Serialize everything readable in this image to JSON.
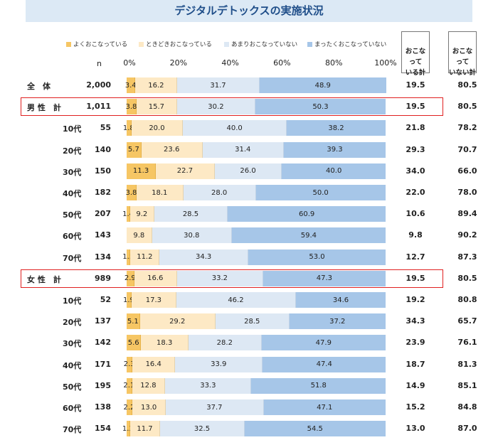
{
  "title": "デジタルデトックスの実施状況",
  "n_label": "n",
  "legend": [
    {
      "label": "よくおこなっている",
      "color": "#f6c664"
    },
    {
      "label": "ときどきおこなっている",
      "color": "#fde9c5"
    },
    {
      "label": "あまりおこなっていない",
      "color": "#dde8f4"
    },
    {
      "label": "まったくおこなっていない",
      "color": "#a6c6e8"
    }
  ],
  "header_box_1": "おこなって\nいる計",
  "header_box_2": "おこなって\nいない計",
  "chart_data": {
    "type": "bar",
    "stacked": true,
    "orientation": "horizontal",
    "title": "デジタルデトックスの実施状況",
    "xlim": [
      0,
      100
    ],
    "x_ticks": [
      "0%",
      "20%",
      "40%",
      "60%",
      "80%",
      "100%"
    ],
    "series": [
      "よくおこなっている",
      "ときどきおこなっている",
      "あまりおこなっていない",
      "まったくおこなっていない"
    ],
    "rows": [
      {
        "label": "全　体",
        "group": true,
        "n": "2,000",
        "values": [
          3.4,
          16.2,
          31.7,
          48.9
        ],
        "done": "19.5",
        "not_done": "80.5"
      },
      {
        "label": "男 性　計",
        "group": true,
        "highlight": true,
        "n": "1,011",
        "values": [
          3.8,
          15.7,
          30.2,
          50.3
        ],
        "done": "19.5",
        "not_done": "80.5"
      },
      {
        "label": "10代",
        "n": "55",
        "values": [
          1.8,
          20.0,
          40.0,
          38.2
        ],
        "done": "21.8",
        "not_done": "78.2"
      },
      {
        "label": "20代",
        "n": "140",
        "values": [
          5.7,
          23.6,
          31.4,
          39.3
        ],
        "done": "29.3",
        "not_done": "70.7"
      },
      {
        "label": "30代",
        "n": "150",
        "values": [
          11.3,
          22.7,
          26.0,
          40.0
        ],
        "done": "34.0",
        "not_done": "66.0"
      },
      {
        "label": "40代",
        "n": "182",
        "values": [
          3.8,
          18.1,
          28.0,
          50.0
        ],
        "done": "22.0",
        "not_done": "78.0"
      },
      {
        "label": "50代",
        "n": "207",
        "values": [
          1.4,
          9.2,
          28.5,
          60.9
        ],
        "done": "10.6",
        "not_done": "89.4"
      },
      {
        "label": "60代",
        "n": "143",
        "values": [
          0.0,
          9.8,
          30.8,
          59.4
        ],
        "done": "9.8",
        "not_done": "90.2"
      },
      {
        "label": "70代",
        "n": "134",
        "values": [
          1.5,
          11.2,
          34.3,
          53.0
        ],
        "done": "12.7",
        "not_done": "87.3"
      },
      {
        "label": "女 性　計",
        "group": true,
        "highlight": true,
        "n": "989",
        "values": [
          2.9,
          16.6,
          33.2,
          47.3
        ],
        "done": "19.5",
        "not_done": "80.5"
      },
      {
        "label": "10代",
        "n": "52",
        "values": [
          1.9,
          17.3,
          46.2,
          34.6
        ],
        "done": "19.2",
        "not_done": "80.8"
      },
      {
        "label": "20代",
        "n": "137",
        "values": [
          5.1,
          29.2,
          28.5,
          37.2
        ],
        "done": "34.3",
        "not_done": "65.7"
      },
      {
        "label": "30代",
        "n": "142",
        "values": [
          5.6,
          18.3,
          28.2,
          47.9
        ],
        "done": "23.9",
        "not_done": "76.1"
      },
      {
        "label": "40代",
        "n": "171",
        "values": [
          2.3,
          16.4,
          33.9,
          47.4
        ],
        "done": "18.7",
        "not_done": "81.3"
      },
      {
        "label": "50代",
        "n": "195",
        "values": [
          2.1,
          12.8,
          33.3,
          51.8
        ],
        "done": "14.9",
        "not_done": "85.1"
      },
      {
        "label": "60代",
        "n": "138",
        "values": [
          2.2,
          13.0,
          37.7,
          47.1
        ],
        "done": "15.2",
        "not_done": "84.8"
      },
      {
        "label": "70代",
        "n": "154",
        "values": [
          1.3,
          11.7,
          32.5,
          54.5
        ],
        "done": "13.0",
        "not_done": "87.0"
      }
    ]
  }
}
